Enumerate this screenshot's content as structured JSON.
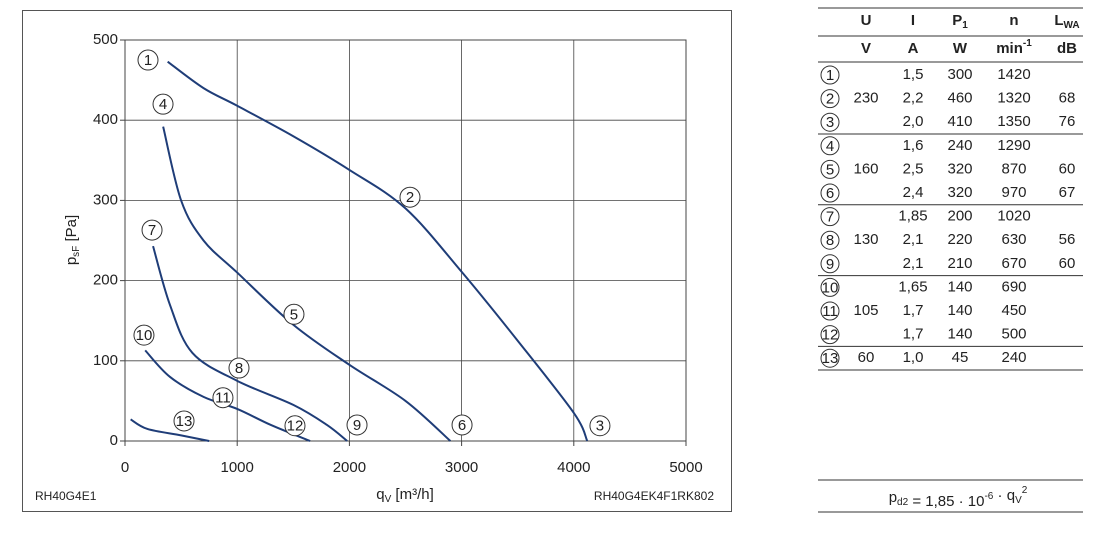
{
  "chart_data": {
    "type": "line",
    "x_label": {
      "main": "q",
      "sub": "V",
      "rest": " [m³/h]"
    },
    "y_label": {
      "main": "p",
      "sub": "sF",
      "rest": " [Pa]"
    },
    "notes": [
      "RH40G4E1",
      "RH40G4EK4F1RK802"
    ],
    "xlim": [
      0,
      5000
    ],
    "ylim": [
      0,
      500
    ],
    "xticks": [
      0,
      1000,
      2000,
      3000,
      4000,
      5000
    ],
    "yticks": [
      0,
      100,
      200,
      300,
      400,
      500
    ],
    "grid": true,
    "series": [
      {
        "color": "#1f3d78",
        "x": [
          380,
          700,
          1000,
          1500,
          2000,
          2500,
          3000,
          3500,
          4000,
          4120
        ],
        "values": [
          473,
          440,
          418,
          380,
          338,
          290,
          211,
          125,
          35,
          0
        ]
      },
      {
        "color": "#1f3d78",
        "x": [
          340,
          500,
          700,
          1000,
          1500,
          2000,
          2500,
          2900
        ],
        "values": [
          392,
          300,
          250,
          210,
          145,
          95,
          50,
          0
        ]
      },
      {
        "color": "#1f3d78",
        "x": [
          250,
          400,
          600,
          1000,
          1500,
          1800,
          1980
        ],
        "values": [
          243,
          170,
          110,
          75,
          45,
          20,
          0
        ]
      },
      {
        "color": "#1f3d78",
        "x": [
          180,
          400,
          700,
          1000,
          1300,
          1650
        ],
        "values": [
          113,
          80,
          55,
          40,
          20,
          0
        ]
      },
      {
        "color": "#1f3d78",
        "x": [
          50,
          200,
          500,
          750
        ],
        "values": [
          27,
          15,
          7,
          0
        ]
      }
    ],
    "annotations": [
      {
        "text": "1",
        "x": 205,
        "y": 475
      },
      {
        "text": "2",
        "x": 2540,
        "y": 304
      },
      {
        "text": "3",
        "x": 4233,
        "y": 19
      },
      {
        "text": "4",
        "x": 339,
        "y": 420
      },
      {
        "text": "5",
        "x": 1506,
        "y": 158
      },
      {
        "text": "6",
        "x": 3004,
        "y": 20
      },
      {
        "text": "7",
        "x": 241,
        "y": 263
      },
      {
        "text": "8",
        "x": 1016,
        "y": 91
      },
      {
        "text": "9",
        "x": 2068,
        "y": 20
      },
      {
        "text": "10",
        "x": 169,
        "y": 132
      },
      {
        "text": "11",
        "x": 873,
        "y": 54
      },
      {
        "text": "12",
        "x": 1515,
        "y": 19
      },
      {
        "text": "13",
        "x": 526,
        "y": 25
      }
    ]
  },
  "table": {
    "header": [
      [
        {
          "main": "U"
        },
        {
          "main": "I"
        },
        {
          "main": "P",
          "sub": "1"
        },
        {
          "main": "n"
        },
        {
          "main": "L",
          "sub": "WA"
        }
      ],
      [
        {
          "main": "V"
        },
        {
          "main": "A"
        },
        {
          "main": "W"
        },
        {
          "main": "min",
          "sup": "-1"
        },
        {
          "main": "dB"
        }
      ]
    ],
    "groups": [
      {
        "U": "230",
        "rows": [
          [
            "1",
            "1,5",
            "300",
            "1420",
            null
          ],
          [
            "2",
            "2,2",
            "460",
            "1320",
            "68"
          ],
          [
            "3",
            "2,0",
            "410",
            "1350",
            "76"
          ]
        ]
      },
      {
        "U": "160",
        "rows": [
          [
            "4",
            "1,6",
            "240",
            "1290",
            null
          ],
          [
            "5",
            "2,5",
            "320",
            "870",
            "60"
          ],
          [
            "6",
            "2,4",
            "320",
            "970",
            "67"
          ]
        ]
      },
      {
        "U": "130",
        "rows": [
          [
            "7",
            "1,85",
            "200",
            "1020",
            null
          ],
          [
            "8",
            "2,1",
            "220",
            "630",
            "56"
          ],
          [
            "9",
            "2,1",
            "210",
            "670",
            "60"
          ]
        ]
      },
      {
        "U": "105",
        "rows": [
          [
            "10",
            "1,65",
            "140",
            "690",
            null
          ],
          [
            "11",
            "1,7",
            "140",
            "450",
            null
          ],
          [
            "12",
            "1,7",
            "140",
            "500",
            null
          ]
        ]
      },
      {
        "U": "60",
        "rows": [
          [
            "13",
            "1,0",
            "45",
            "240",
            null
          ]
        ]
      }
    ]
  },
  "formula": [
    {
      "main": "p",
      "sub": "d2"
    },
    {
      "main": " = 1,85 · 10",
      "sup": "-6"
    },
    {
      "main": " · q",
      "sub": "V",
      "sup": "2"
    }
  ]
}
